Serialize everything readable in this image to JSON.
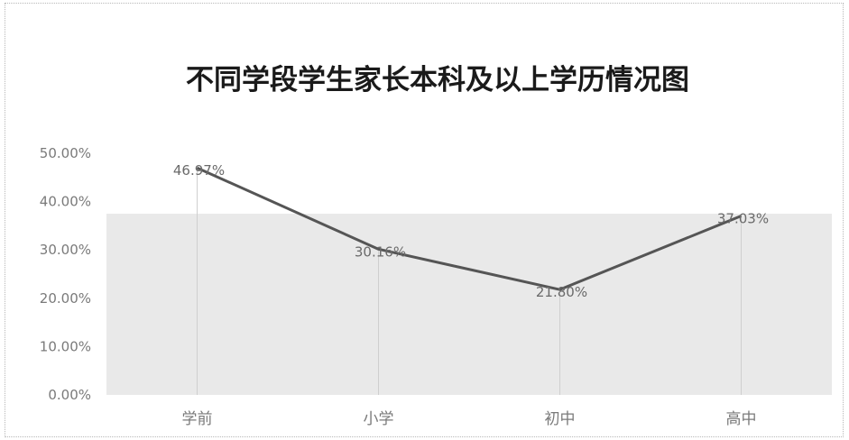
{
  "chart_data": {
    "type": "line",
    "title": "不同学段学生家长本科及以上学历情况图",
    "categories": [
      "学前",
      "小学",
      "初中",
      "高中"
    ],
    "series": [
      {
        "values": [
          46.97,
          30.16,
          21.8,
          37.03
        ]
      }
    ],
    "data_labels": [
      "46.97%",
      "30.16%",
      "21.80%",
      "37.03%"
    ],
    "y_ticks": [
      "0.00%",
      "10.00%",
      "20.00%",
      "30.00%",
      "40.00%",
      "50.00%"
    ],
    "ylim": [
      0,
      50
    ],
    "grid": false,
    "legend": "none",
    "colors": {
      "line": "#555555",
      "drop_line": "#cfcfcf",
      "area_fill": "#e9e9e9"
    }
  }
}
